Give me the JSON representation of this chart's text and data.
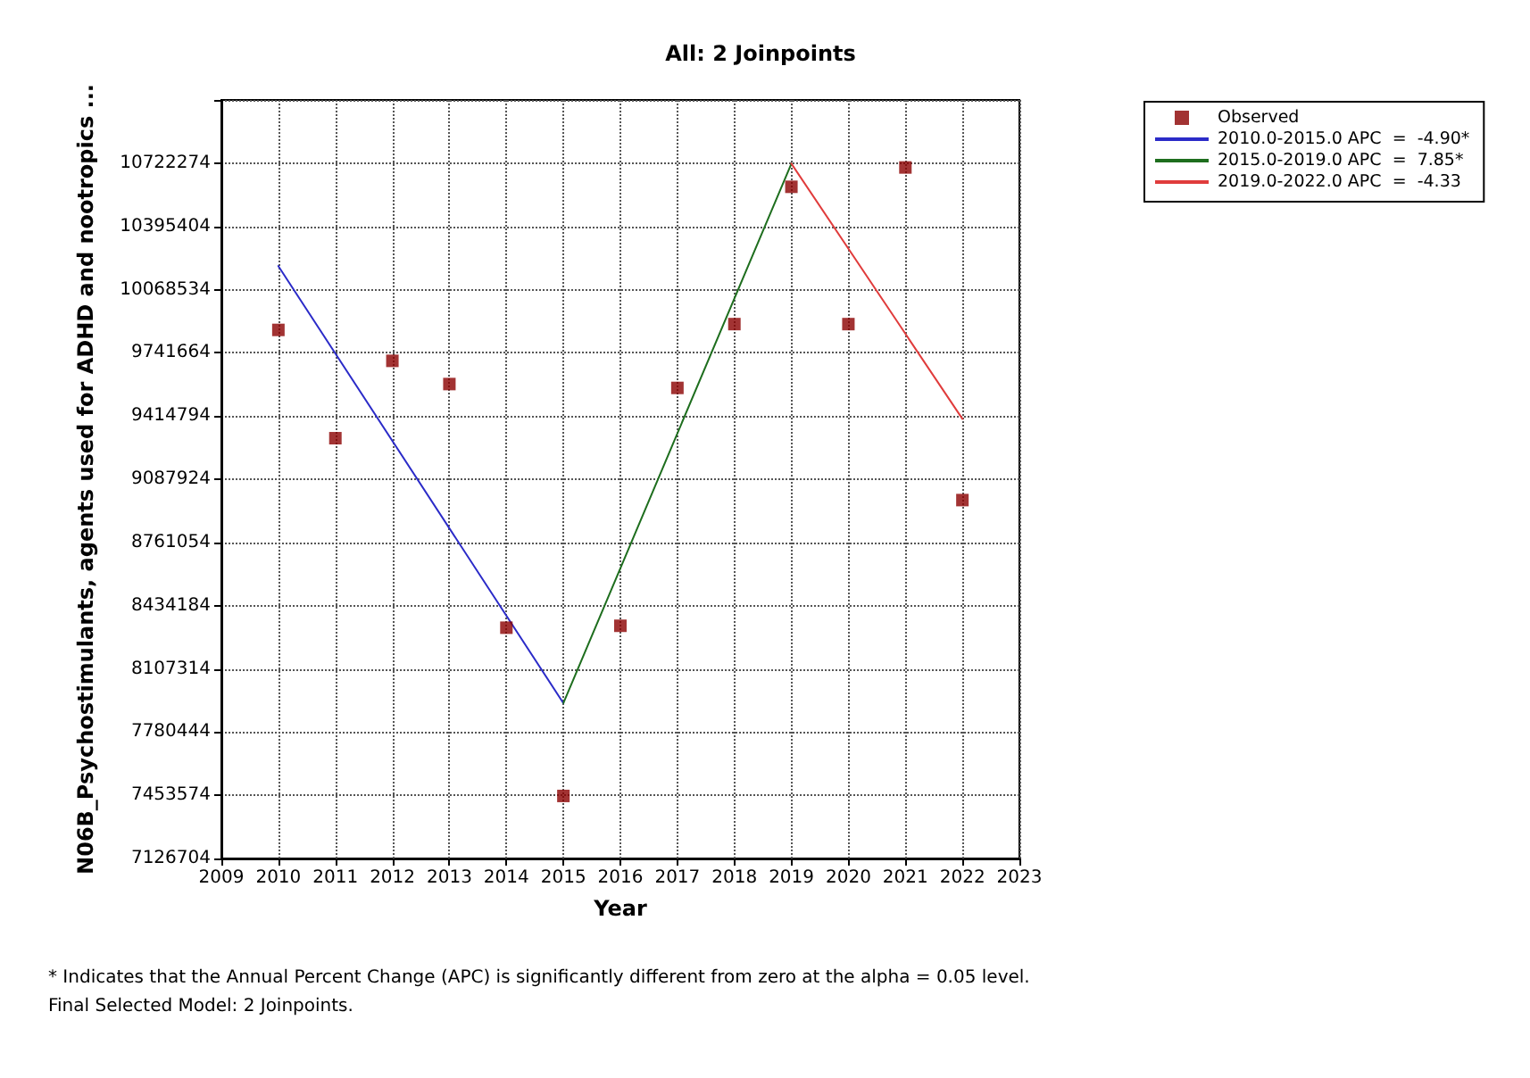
{
  "chart_data": {
    "type": "scatter",
    "title": "All: 2 Joinpoints",
    "xlabel": "Year",
    "ylabel": "N06B_Psychostimulants, agents used for ADHD and nootropics ...",
    "annotations": [
      "* Indicates that the Annual Percent Change (APC) is significantly different from zero at the alpha = 0.05 level.",
      "Final Selected Model: 2 Joinpoints."
    ],
    "xlim": [
      2009,
      2023
    ],
    "xticks": [
      2009,
      2010,
      2011,
      2012,
      2013,
      2014,
      2015,
      2016,
      2017,
      2018,
      2019,
      2020,
      2021,
      2022,
      2023
    ],
    "ylim": [
      7126704,
      11049144
    ],
    "yticks": [
      7126704,
      7453574,
      7780444,
      8107314,
      8434184,
      8761054,
      9087924,
      9414794,
      9741664,
      10068534,
      10395404,
      10722274,
      {
        "value": 11049144,
        "label": null
      }
    ],
    "grid": true,
    "legend": "top right",
    "series": [
      {
        "name": "Observed",
        "marker": "square",
        "color": "#8b0000",
        "x": [
          2010,
          2011,
          2012,
          2013,
          2014,
          2015,
          2016,
          2017,
          2018,
          2019,
          2020,
          2021,
          2022
        ],
        "values": [
          9860000,
          9300000,
          9700000,
          9580000,
          8320000,
          7450000,
          8330000,
          9560000,
          9890000,
          10600000,
          9890000,
          10700000,
          8980000
        ]
      },
      {
        "name": "2010.0-2015.0 APC  =  -4.90*",
        "type": "line",
        "marker": "none",
        "line_style": "solid",
        "color": "#2b2bc8",
        "x": [
          2010,
          2015
        ],
        "values": [
          10190000,
          7930000
        ]
      },
      {
        "name": "2015.0-2019.0 APC  =  7.85*",
        "type": "line",
        "marker": "none",
        "line_style": "solid",
        "color": "#1e6e1e",
        "x": [
          2015,
          2019
        ],
        "values": [
          7930000,
          10720000
        ]
      },
      {
        "name": "2019.0-2022.0 APC  =  -4.33",
        "type": "line",
        "marker": "none",
        "line_style": "solid",
        "color": "#e03c3c",
        "x": [
          2019,
          2022
        ],
        "values": [
          10720000,
          9400000
        ]
      }
    ]
  }
}
